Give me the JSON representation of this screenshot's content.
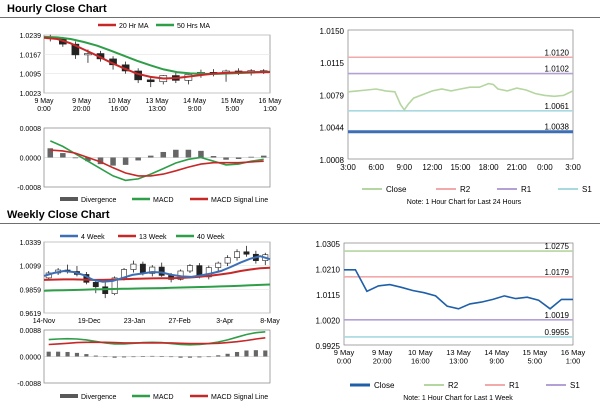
{
  "titles": {
    "hourly": "Hourly Close Chart",
    "weekly": "Weekly Close Chart"
  },
  "chart_data": [
    {
      "type": "line",
      "title": "",
      "legend": [
        "20 Hr MA",
        "50 Hrs MA"
      ],
      "legend_colors": [
        "#c62828",
        "#2e9e48"
      ],
      "y_ticks": [
        "1.0239",
        "1.0167",
        "1.0095",
        "1.0023"
      ],
      "x_ticks": [
        "9 May\n0:00",
        "9 May\n20:00",
        "10 May\n16:00",
        "13 May\n13:00",
        "14 May\n9:00",
        "15 May\n5:00",
        "16 May\n1:00"
      ],
      "ylim": [
        1.0023,
        1.0239
      ],
      "series": [
        {
          "name": "20 Hr MA",
          "values": [
            1.0229,
            1.0224,
            1.0208,
            1.0185,
            1.0162,
            1.0137,
            1.0115,
            1.0095,
            1.0083,
            1.0077,
            1.0079,
            1.0085,
            1.0091,
            1.0096,
            1.0099,
            1.01,
            1.0101,
            1.0101
          ]
        },
        {
          "name": "50 Hrs MA",
          "values": [
            1.0232,
            1.023,
            1.0224,
            1.0213,
            1.0199,
            1.0181,
            1.0162,
            1.0143,
            1.0126,
            1.0111,
            1.0101,
            1.0096,
            1.0094,
            1.0094,
            1.0096,
            1.0098,
            1.01,
            1.0102
          ]
        }
      ],
      "price": [
        [
          1.0232,
          1.024,
          1.0215,
          1.0225
        ],
        [
          1.0225,
          1.0232,
          1.0195,
          1.0205
        ],
        [
          1.0205,
          1.0215,
          1.015,
          1.0165
        ],
        [
          1.0165,
          1.0185,
          1.0135,
          1.017
        ],
        [
          1.017,
          1.018,
          1.014,
          1.015
        ],
        [
          1.015,
          1.016,
          1.011,
          1.0128
        ],
        [
          1.0128,
          1.014,
          1.0095,
          1.0105
        ],
        [
          1.0105,
          1.0115,
          1.006,
          1.0072
        ],
        [
          1.0072,
          1.0085,
          1.0045,
          1.0065
        ],
        [
          1.0065,
          1.009,
          1.0055,
          1.0088
        ],
        [
          1.0088,
          1.01,
          1.006,
          1.007
        ],
        [
          1.007,
          1.0095,
          1.0055,
          1.0092
        ],
        [
          1.0092,
          1.011,
          1.008,
          1.01
        ],
        [
          1.01,
          1.0112,
          1.0085,
          1.0095
        ],
        [
          1.0095,
          1.011,
          1.0065,
          1.0105
        ],
        [
          1.0105,
          1.0115,
          1.009,
          1.0098
        ],
        [
          1.0098,
          1.0112,
          1.0088,
          1.0106
        ],
        [
          1.0106,
          1.0112,
          1.0094,
          1.01
        ]
      ]
    },
    {
      "type": "line",
      "title": "",
      "y_ticks": [
        "0.0008",
        "0.0000",
        "-0.0008"
      ],
      "ylim": [
        -0.0008,
        0.0008
      ],
      "legend": [
        "Divergence",
        "MACD",
        "MACD Signal Line"
      ],
      "legend_colors": [
        "#595959",
        "#2e9e48",
        "#c62828"
      ],
      "series": [
        {
          "name": "MACD",
          "values": [
            0.00045,
            0.0003,
            0.0001,
            -0.0001,
            -0.0003,
            -0.0005,
            -0.00062,
            -0.00058,
            -0.00045,
            -0.0003,
            -0.00015,
            -5e-05,
            0.0,
            -0.0001,
            -0.0002,
            -0.00018,
            -0.0001,
            -5e-05
          ]
        },
        {
          "name": "MACD Signal Line",
          "values": [
            0.0002,
            0.00018,
            0.00012,
            0.0,
            -0.00012,
            -0.00028,
            -0.00042,
            -0.0005,
            -0.0005,
            -0.00045,
            -0.00036,
            -0.00026,
            -0.00018,
            -0.00014,
            -0.00014,
            -0.00014,
            -0.00012,
            -0.0001
          ]
        },
        {
          "name": "Divergence",
          "values": [
            0.00025,
            0.00012,
            -2e-05,
            -0.0001,
            -0.00018,
            -0.00022,
            -0.0002,
            -8e-05,
            5e-05,
            0.00015,
            0.00021,
            0.00021,
            0.00018,
            4e-05,
            -6e-05,
            -4e-05,
            2e-05,
            5e-05
          ]
        }
      ]
    },
    {
      "type": "line",
      "title": "",
      "y_ticks": [
        "1.0150",
        "1.0115",
        "1.0079",
        "1.0044",
        "1.0008"
      ],
      "x_ticks": [
        "3:00",
        "6:00",
        "9:00",
        "12:00",
        "15:00",
        "18:00",
        "21:00",
        "0:00",
        "3:00"
      ],
      "ylim": [
        1.0008,
        1.015
      ],
      "levels": [
        {
          "name": "R2",
          "value": 1.012,
          "label": "1.0120",
          "color": "#f2a9a9"
        },
        {
          "name": "R1",
          "value": 1.0102,
          "label": "1.0102",
          "color": "#b3a1d6"
        },
        {
          "name": "S1",
          "value": 1.0061,
          "label": "1.0061",
          "color": "#a8d8e0"
        },
        {
          "name": "S2",
          "value": 1.0038,
          "label": "1.0038",
          "color": "#3d6fb6"
        }
      ],
      "series": [
        {
          "name": "Close",
          "x": [
            3,
            4,
            5,
            6,
            7,
            8,
            8.6,
            9,
            9.4,
            10,
            11,
            12,
            13,
            14,
            15,
            16,
            17,
            18,
            18.5,
            19,
            20,
            21,
            22,
            23,
            24,
            25,
            26,
            27
          ],
          "values": [
            1.0082,
            1.0083,
            1.0084,
            1.0085,
            1.0083,
            1.0082,
            1.0068,
            1.0062,
            1.0068,
            1.0075,
            1.0079,
            1.0083,
            1.0085,
            1.0083,
            1.0085,
            1.0087,
            1.0087,
            1.0091,
            1.009,
            1.0085,
            1.0083,
            1.0086,
            1.0084,
            1.008,
            1.0078,
            1.0077,
            1.0078,
            1.0083
          ]
        }
      ],
      "legend": [
        "Close",
        "R2",
        "R1",
        "S1",
        "S2"
      ],
      "legend_colors": [
        "#b5d6a0",
        "#f2a9a9",
        "#b3a1d6",
        "#a8d8e0",
        "#3d6fb6"
      ],
      "note": "Note: 1 Hour Chart for Last 24 Hours"
    },
    {
      "type": "line",
      "title": "",
      "legend": [
        "4 Week",
        "13 Week",
        "40 Week"
      ],
      "legend_colors": [
        "#3d6fb6",
        "#c62828",
        "#2e9e48"
      ],
      "y_ticks": [
        "1.0339",
        "1.0099",
        "0.9859",
        "0.9619"
      ],
      "x_ticks": [
        "14-Nov",
        "19-Dec",
        "23-Jan",
        "27-Feb",
        "3-Apr",
        "8-May"
      ],
      "ylim": [
        0.9619,
        1.0339
      ],
      "series": [
        {
          "name": "4 Week",
          "values": [
            0.9995,
            1.0025,
            1.0045,
            1.0035,
            1.0005,
            0.9955,
            0.9935,
            0.9945,
            0.9975,
            1.0005,
            1.002,
            1.0035,
            1.003,
            1.0005,
            0.999,
            0.9985,
            1.0,
            1.002,
            1.0045,
            1.0085,
            1.013,
            1.017,
            1.0195,
            1.0165
          ]
        },
        {
          "name": "13 Week",
          "values": [
            0.9955,
            0.9958,
            0.996,
            0.996,
            0.9958,
            0.9955,
            0.9955,
            0.9958,
            0.9962,
            0.9965,
            0.9968,
            0.997,
            0.9972,
            0.9972,
            0.9975,
            0.998,
            0.9988,
            0.9998,
            1.001,
            1.0025,
            1.0045,
            1.006,
            1.0072,
            1.0078
          ]
        },
        {
          "name": "40 Week",
          "values": [
            0.9845,
            0.9848,
            0.985,
            0.9852,
            0.9855,
            0.9858,
            0.986,
            0.9862,
            0.9864,
            0.9866,
            0.9868,
            0.987,
            0.9872,
            0.9875,
            0.9878,
            0.988,
            0.9883,
            0.9886,
            0.9889,
            0.9892,
            0.9896,
            0.99,
            0.9904,
            0.9908
          ]
        }
      ],
      "price": [
        [
          0.9975,
          1.0045,
          0.996,
          1.0025
        ],
        [
          1.0025,
          1.0075,
          1.0005,
          1.0055
        ],
        [
          1.0055,
          1.011,
          1.002,
          1.004
        ],
        [
          1.004,
          1.0095,
          0.999,
          1.001
        ],
        [
          1.001,
          1.0035,
          0.991,
          0.993
        ],
        [
          0.993,
          0.996,
          0.982,
          0.9885
        ],
        [
          0.9885,
          0.9935,
          0.977,
          0.9815
        ],
        [
          0.9815,
          0.999,
          0.98,
          0.9975
        ],
        [
          0.9975,
          1.0075,
          0.995,
          1.006
        ],
        [
          1.006,
          1.015,
          1.003,
          1.0115
        ],
        [
          1.0115,
          1.014,
          1.0,
          1.002
        ],
        [
          1.002,
          1.0105,
          0.999,
          1.0085
        ],
        [
          1.0085,
          1.013,
          0.9985,
          1.0
        ],
        [
          1.0,
          1.0025,
          0.993,
          0.996
        ],
        [
          0.996,
          1.006,
          0.995,
          1.0045
        ],
        [
          1.0045,
          1.0115,
          1.0025,
          1.01
        ],
        [
          1.01,
          1.0125,
          0.997,
          0.9985
        ],
        [
          0.9985,
          1.01,
          0.996,
          1.008
        ],
        [
          1.008,
          1.014,
          1.004,
          1.0125
        ],
        [
          1.0125,
          1.0205,
          1.0095,
          1.018
        ],
        [
          1.018,
          1.0265,
          1.015,
          1.024
        ],
        [
          1.024,
          1.03,
          1.019,
          1.0215
        ],
        [
          1.0215,
          1.025,
          1.012,
          1.015
        ],
        [
          1.015,
          1.023,
          1.0105,
          1.021
        ]
      ]
    },
    {
      "type": "line",
      "title": "",
      "y_ticks": [
        "0.0088",
        "0.0000",
        "-0.0088"
      ],
      "ylim": [
        -0.0088,
        0.0088
      ],
      "legend": [
        "Divergence",
        "MACD",
        "MACD Signal Line"
      ],
      "legend_colors": [
        "#595959",
        "#2e9e48",
        "#c62828"
      ],
      "series": [
        {
          "name": "MACD",
          "values": [
            0.0056,
            0.0058,
            0.0059,
            0.0058,
            0.0055,
            0.005,
            0.0045,
            0.0042,
            0.0042,
            0.0044,
            0.0046,
            0.0047,
            0.0046,
            0.0043,
            0.004,
            0.0039,
            0.004,
            0.0043,
            0.0048,
            0.0055,
            0.0064,
            0.0073,
            0.0079,
            0.0082
          ]
        },
        {
          "name": "MACD Signal Line",
          "values": [
            0.004,
            0.0042,
            0.0044,
            0.0046,
            0.0047,
            0.0047,
            0.0047,
            0.0046,
            0.0045,
            0.0045,
            0.0045,
            0.0045,
            0.0045,
            0.0045,
            0.0044,
            0.0043,
            0.0043,
            0.0043,
            0.0044,
            0.0046,
            0.0049,
            0.0053,
            0.0058,
            0.0062
          ]
        },
        {
          "name": "Divergence",
          "values": [
            0.0016,
            0.0016,
            0.0015,
            0.0012,
            0.0008,
            0.0003,
            -0.0002,
            -0.0004,
            -0.0003,
            -0.0001,
            0.0001,
            0.0002,
            0.0001,
            -0.0002,
            -0.0004,
            -0.0004,
            -0.0003,
            0.0,
            0.0004,
            0.0009,
            0.0015,
            0.002,
            0.0021,
            0.002
          ]
        }
      ]
    },
    {
      "type": "line",
      "title": "",
      "y_ticks": [
        "1.0305",
        "1.0210",
        "1.0115",
        "1.0020",
        "0.9925"
      ],
      "x_ticks": [
        "9 May\n0:00",
        "9 May\n20:00",
        "10 May\n16:00",
        "13 May\n13:00",
        "14 May\n9:00",
        "15 May\n5:00",
        "16 May\n1:00"
      ],
      "ylim": [
        0.9925,
        1.0305
      ],
      "levels": [
        {
          "name": "R2",
          "value": 1.0275,
          "label": "1.0275",
          "color": "#b5d6a0"
        },
        {
          "name": "R1",
          "value": 1.0179,
          "label": "1.0179",
          "color": "#f2a9a9"
        },
        {
          "name": "S1",
          "value": 1.0019,
          "label": "1.0019",
          "color": "#b3a1d6"
        },
        {
          "name": "S2",
          "value": 0.9955,
          "label": "0.9955",
          "color": "#a8d8e0"
        }
      ],
      "series": [
        {
          "name": "Close",
          "x": [
            0,
            0.3,
            0.6,
            0.9,
            1.2,
            1.5,
            1.8,
            2.1,
            2.4,
            2.7,
            3.0,
            3.3,
            3.6,
            3.9,
            4.2,
            4.5,
            4.8,
            5.1,
            5.4,
            5.7,
            6.0
          ],
          "values": [
            1.0205,
            1.0205,
            1.0125,
            1.0145,
            1.015,
            1.014,
            1.0128,
            1.012,
            1.0108,
            1.007,
            1.006,
            1.0078,
            1.0085,
            1.0095,
            1.0108,
            1.0098,
            1.0103,
            1.0092,
            1.006,
            1.0095,
            1.0095
          ]
        }
      ],
      "legend": [
        "Close",
        "R2",
        "R1",
        "S1",
        "S2"
      ],
      "legend_colors": [
        "#1f5fa8",
        "#b5d6a0",
        "#f2a9a9",
        "#b3a1d6",
        "#a8d8e0"
      ],
      "note": "Note: 1 Hour Chart for Last 1 Week"
    }
  ]
}
